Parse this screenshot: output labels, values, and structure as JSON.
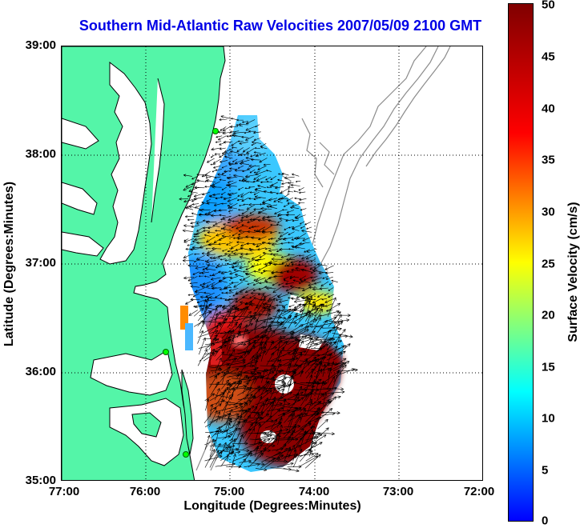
{
  "title": "Southern Mid-Atlantic Raw Velocities 2007/05/09 2100 GMT",
  "x_axis": {
    "label": "Longitude (Degrees:Minutes)",
    "ticks": [
      "77:00",
      "76:00",
      "75:00",
      "74:00",
      "73:00",
      "72:00"
    ],
    "range": [
      -77,
      -72
    ]
  },
  "y_axis": {
    "label": "Latitude (Degrees:Minutes)",
    "ticks": [
      "39:00",
      "38:00",
      "37:00",
      "36:00",
      "35:00"
    ],
    "range": [
      35,
      39
    ]
  },
  "colorbar": {
    "label": "Surface Velocity (cm/s)",
    "ticks": [
      "50",
      "45",
      "40",
      "35",
      "30",
      "25",
      "20",
      "15",
      "10",
      "5",
      "0"
    ],
    "range": [
      0,
      50
    ],
    "colors": [
      "#0000ff",
      "#00ffff",
      "#ffff00",
      "#ff0000",
      "#800000"
    ]
  },
  "colors": {
    "land": "#54f5a8",
    "coast": "#000000",
    "bathymetry": "#8c8c8c",
    "station": "#00ff00",
    "title": "#0000e6"
  },
  "map_elements": [
    "land",
    "coastline",
    "bathymetry-contours",
    "velocity-field",
    "velocity-arrows",
    "radar-stations",
    "grid"
  ]
}
